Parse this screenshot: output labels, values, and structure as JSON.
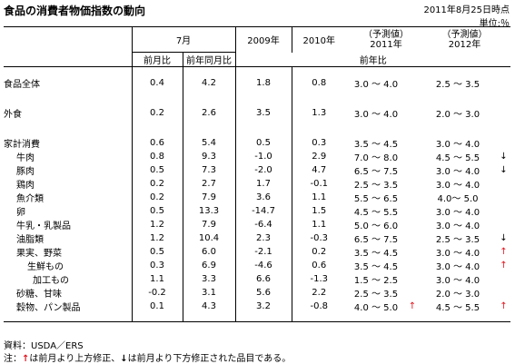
{
  "title": "食品の消費者物価指数の動向",
  "date": "2011年8月25日時点",
  "unit": "単位:％",
  "header": {
    "month_group": "7月",
    "y2009": "2009年",
    "y2010": "2010年",
    "forecast2011_l1": "（予測値）",
    "forecast2011_l2": "2011年",
    "forecast2012_l1": "（予測値）",
    "forecast2012_l2": "2012年",
    "mom": "前月比",
    "yoy": "前年同月比",
    "prev_year": "前年比"
  },
  "rows": [
    {
      "name": "食品全体",
      "mom": "0.4",
      "yoy": "4.2",
      "y2009": "1.8",
      "y2010": "0.8",
      "f2011": "3.0 ～ 4.0",
      "a2011": "",
      "f2012": "2.5 ～ 3.5",
      "a2012": ""
    },
    {
      "name": "外食",
      "mom": "0.2",
      "yoy": "2.6",
      "y2009": "3.5",
      "y2010": "1.3",
      "f2011": "3.0 ～ 4.0",
      "a2011": "",
      "f2012": "2.0 ～ 3.0",
      "a2012": ""
    },
    {
      "name": "家計消費",
      "mom": "0.6",
      "yoy": "5.4",
      "y2009": "0.5",
      "y2010": "0.3",
      "f2011": "3.5 ～ 4.5",
      "a2011": "",
      "f2012": "3.0 ～ 4.0",
      "a2012": ""
    },
    {
      "name": "牛肉",
      "mom": "0.8",
      "yoy": "9.3",
      "y2009": "-1.0",
      "y2010": "2.9",
      "f2011": "7.0 ～ 8.0",
      "a2011": "",
      "f2012": "4.5 ～ 5.5",
      "a2012": "↓"
    },
    {
      "name": "豚肉",
      "mom": "0.5",
      "yoy": "7.3",
      "y2009": "-2.0",
      "y2010": "4.7",
      "f2011": "6.5 ～ 7.5",
      "a2011": "",
      "f2012": "3.0 ～ 4.0",
      "a2012": "↓"
    },
    {
      "name": "鶏肉",
      "mom": "0.2",
      "yoy": "2.7",
      "y2009": "1.7",
      "y2010": "-0.1",
      "f2011": "2.5 ～ 3.5",
      "a2011": "",
      "f2012": "3.0 ～ 4.0",
      "a2012": ""
    },
    {
      "name": "魚介類",
      "mom": "0.2",
      "yoy": "7.9",
      "y2009": "3.6",
      "y2010": "1.1",
      "f2011": "5.5 ～ 6.5",
      "a2011": "",
      "f2012": "4.0～ 5.0",
      "a2012": ""
    },
    {
      "name": "卵",
      "mom": "0.5",
      "yoy": "13.3",
      "y2009": "-14.7",
      "y2010": "1.5",
      "f2011": "4.5 ～ 5.5",
      "a2011": "",
      "f2012": "3.0 ～ 4.0",
      "a2012": ""
    },
    {
      "name": "牛乳・乳製品",
      "mom": "1.2",
      "yoy": "7.9",
      "y2009": "-6.4",
      "y2010": "1.1",
      "f2011": "5.0 ～ 6.0",
      "a2011": "",
      "f2012": "3.0 ～ 4.0",
      "a2012": ""
    },
    {
      "name": "油脂類",
      "mom": "1.2",
      "yoy": "10.4",
      "y2009": "2.3",
      "y2010": "-0.3",
      "f2011": "6.5 ～ 7.5",
      "a2011": "",
      "f2012": "2.5 ～ 3.5",
      "a2012": "↓"
    },
    {
      "name": "果実、野菜",
      "mom": "0.5",
      "yoy": "6.0",
      "y2009": "-2.1",
      "y2010": "0.2",
      "f2011": "3.5 ～ 4.5",
      "a2011": "",
      "f2012": "3.0 ～ 4.0",
      "a2012": "↑"
    },
    {
      "name": "生鮮もの",
      "mom": "0.3",
      "yoy": "6.9",
      "y2009": "-4.6",
      "y2010": "0.6",
      "f2011": "3.5 ～ 4.5",
      "a2011": "",
      "f2012": "3.0 ～ 4.0",
      "a2012": "↑"
    },
    {
      "name": "加工もの",
      "mom": "1.1",
      "yoy": "3.3",
      "y2009": "6.6",
      "y2010": "-1.3",
      "f2011": "1.5 ～ 2.5",
      "a2011": "",
      "f2012": "3.0 ～ 4.0",
      "a2012": ""
    },
    {
      "name": "砂糖、甘味",
      "mom": "-0.2",
      "yoy": "3.1",
      "y2009": "5.6",
      "y2010": "2.2",
      "f2011": "2.5 ～ 3.5",
      "a2011": "",
      "f2012": "2.0 ～ 3.0",
      "a2012": ""
    },
    {
      "name": "穀物、パン製品",
      "mom": "0.1",
      "yoy": "4.3",
      "y2009": "3.2",
      "y2010": "-0.8",
      "f2011": "4.0 ～ 5.0",
      "a2011": "↑",
      "f2012": "4.5 ～ 5.5",
      "a2012": "↑"
    }
  ],
  "footer": {
    "source": "資料：USDA／ERS",
    "note_prefix": "注：",
    "up_arrow": "↑",
    "note_up": "は前月より上方修正、",
    "down_arrow": "↓",
    "note_down": "は前月より下方修正された品目である。"
  }
}
